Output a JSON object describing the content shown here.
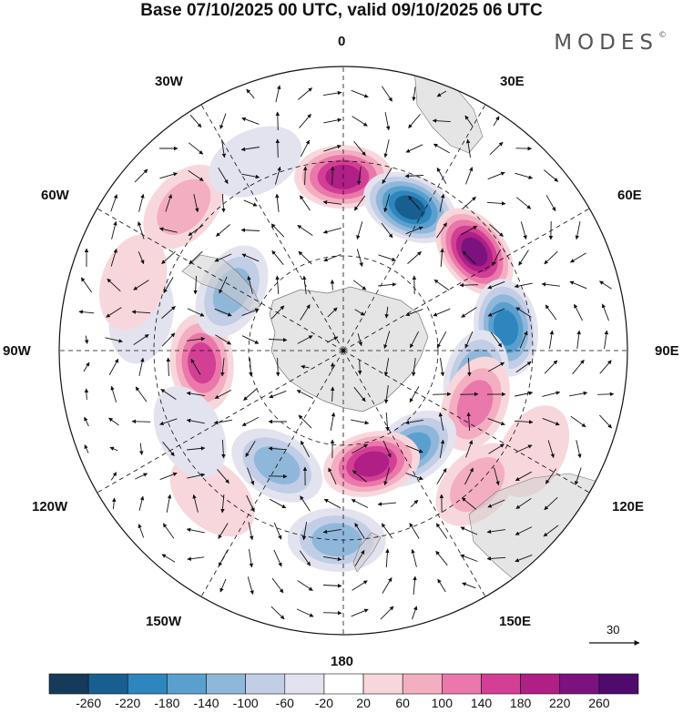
{
  "title": "Base 07/10/2025 00 UTC, valid 09/10/2025 06 UTC",
  "brand": "MODES",
  "brand_mark": "©",
  "longitude_labels": {
    "lon0": "0",
    "lon30e": "30E",
    "lon60e": "60E",
    "lon90e": "90E",
    "lon120e": "120E",
    "lon150e": "150E",
    "lon180": "180",
    "lon150w": "150W",
    "lon120w": "120W",
    "lon90w": "90W",
    "lon60w": "60W",
    "lon30w": "30W"
  },
  "reference_vector": {
    "label": "30"
  },
  "colorbar": {
    "ticks": [
      "-260",
      "-220",
      "-180",
      "-140",
      "-100",
      "-60",
      "-20",
      "20",
      "60",
      "100",
      "140",
      "180",
      "220",
      "260"
    ],
    "colors": [
      "#163a59",
      "#175f91",
      "#2e86be",
      "#5aa0cf",
      "#8fb7da",
      "#c2cde6",
      "#e3e3ef",
      "#ffffff",
      "#f8d7dc",
      "#f4aec1",
      "#ea78aa",
      "#d33f95",
      "#b01f86",
      "#7c1280",
      "#4f0a6e"
    ]
  },
  "anomalies": [
    {
      "name": "center-0",
      "lon": 0,
      "lat": -35,
      "value": 200
    },
    {
      "name": "center-25e",
      "lon": 25,
      "lat": -40,
      "value": -260
    },
    {
      "name": "center-53e",
      "lon": 53,
      "lat": -38,
      "value": 260
    },
    {
      "name": "center-85e",
      "lon": 82,
      "lat": -38,
      "value": -200
    },
    {
      "name": "center-100e",
      "lon": 102,
      "lat": -47,
      "value": -170
    },
    {
      "name": "center-110e",
      "lon": 112,
      "lat": -45,
      "value": 150
    },
    {
      "name": "center-150e",
      "lon": 145,
      "lat": -52,
      "value": -190
    },
    {
      "name": "center-165e",
      "lon": 166,
      "lat": -53,
      "value": 200
    },
    {
      "name": "center-175w",
      "lon": -178,
      "lat": -30,
      "value": -140
    },
    {
      "name": "center-150w",
      "lon": -150,
      "lat": -48,
      "value": -150
    },
    {
      "name": "center-95w",
      "lon": -95,
      "lat": -45,
      "value": 190
    },
    {
      "name": "center-65w",
      "lon": -62,
      "lat": -50,
      "value": -150
    },
    {
      "name": "center-50w",
      "lon": -48,
      "lat": -22,
      "value": 90
    },
    {
      "name": "center-30w",
      "lon": -25,
      "lat": -24,
      "value": -60
    },
    {
      "name": "center-75w",
      "lon": -80,
      "lat": -25,
      "value": -70
    },
    {
      "name": "center-140w",
      "lon": -138,
      "lat": -28,
      "value": 70
    },
    {
      "name": "center-115w",
      "lon": -118,
      "lat": -35,
      "value": -60
    },
    {
      "name": "center-110e-n",
      "lon": 118,
      "lat": -22,
      "value": 60
    },
    {
      "name": "center-135e",
      "lon": 135,
      "lat": -30,
      "value": 80
    },
    {
      "name": "center-70w-n",
      "lon": -72,
      "lat": -20,
      "value": 60
    }
  ]
}
